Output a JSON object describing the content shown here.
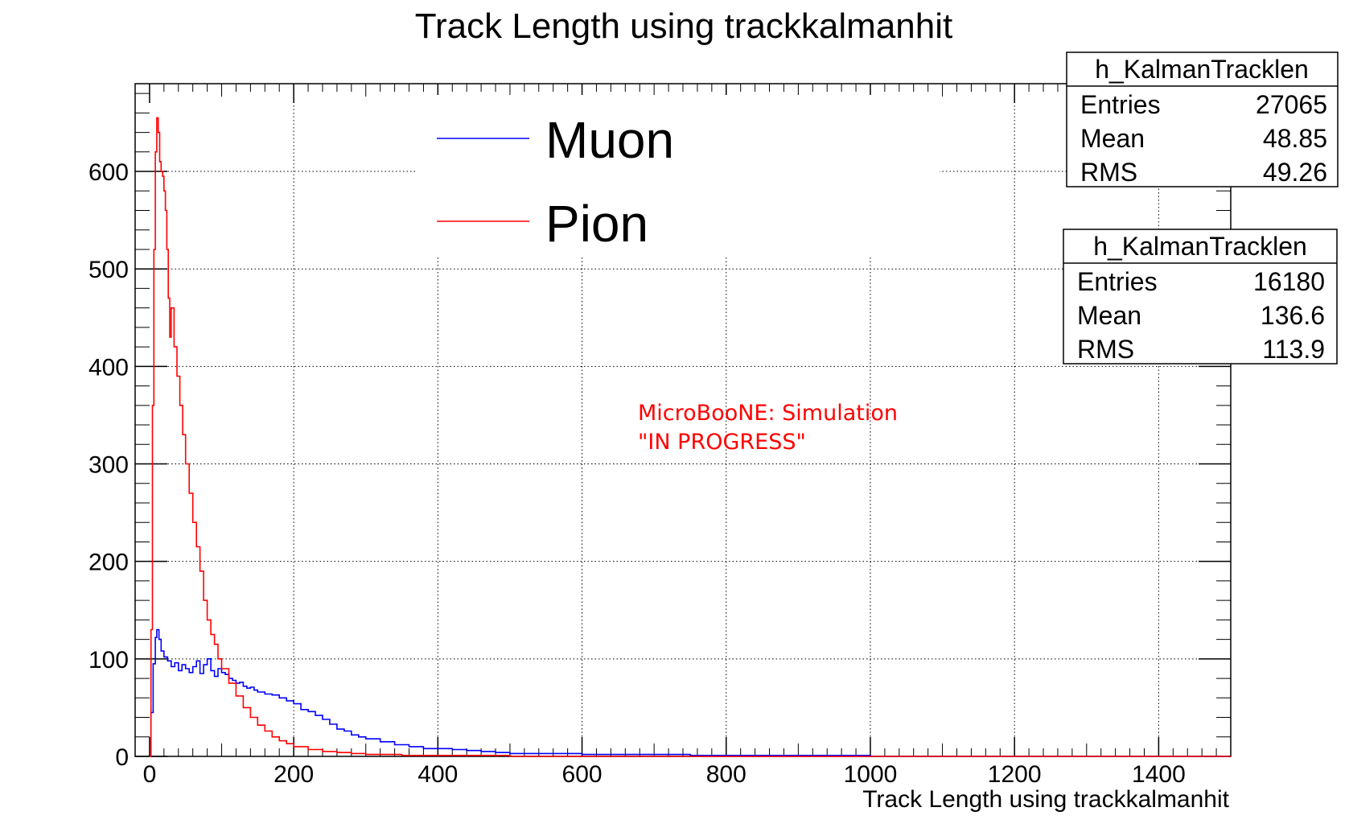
{
  "chart_data": {
    "type": "line",
    "title": "Track Length using trackkalmanhit",
    "xlabel": "Track Length using trackkalmanhit",
    "ylabel": "",
    "xlim": [
      -20,
      1500
    ],
    "ylim": [
      0,
      690
    ],
    "xticks": [
      0,
      200,
      400,
      600,
      800,
      1000,
      1200,
      1400
    ],
    "yticks": [
      0,
      100,
      200,
      300,
      400,
      500,
      600
    ],
    "grid": true,
    "legend_position": "top-center",
    "series": [
      {
        "name": "Muon",
        "color": "#0000ff",
        "x": [
          0,
          2,
          5,
          8,
          10,
          13,
          16,
          20,
          25,
          30,
          35,
          40,
          45,
          50,
          55,
          60,
          65,
          70,
          75,
          80,
          85,
          90,
          95,
          100,
          105,
          110,
          115,
          120,
          125,
          130,
          135,
          140,
          145,
          150,
          160,
          170,
          180,
          190,
          200,
          210,
          220,
          230,
          240,
          250,
          260,
          270,
          280,
          290,
          300,
          320,
          340,
          360,
          380,
          400,
          420,
          440,
          460,
          480,
          500,
          550,
          600,
          650,
          700,
          750,
          800,
          900,
          1000,
          1100,
          1200,
          1300,
          1400,
          1500
        ],
        "y": [
          0,
          45,
          95,
          122,
          130,
          120,
          108,
          102,
          98,
          92,
          96,
          88,
          94,
          90,
          86,
          92,
          98,
          85,
          94,
          100,
          88,
          82,
          90,
          86,
          84,
          80,
          78,
          75,
          76,
          72,
          70,
          71,
          68,
          66,
          64,
          63,
          60,
          57,
          54,
          48,
          46,
          42,
          38,
          33,
          28,
          26,
          22,
          20,
          18,
          15,
          12,
          10,
          8,
          8,
          7,
          6,
          5,
          4,
          3,
          3,
          2,
          2,
          2,
          1,
          1,
          1,
          0,
          0,
          0,
          0,
          0,
          0
        ]
      },
      {
        "name": "Pion",
        "color": "#ff0000",
        "x": [
          0,
          2,
          4,
          6,
          8,
          10,
          12,
          14,
          16,
          18,
          20,
          22,
          24,
          26,
          28,
          30,
          34,
          38,
          42,
          46,
          50,
          55,
          60,
          65,
          70,
          75,
          80,
          85,
          90,
          95,
          100,
          110,
          120,
          130,
          140,
          150,
          160,
          170,
          180,
          190,
          200,
          220,
          240,
          260,
          280,
          300,
          350,
          400,
          500,
          600,
          1000,
          1500
        ],
        "y": [
          0,
          130,
          360,
          520,
          620,
          655,
          640,
          610,
          600,
          595,
          580,
          560,
          520,
          470,
          430,
          460,
          420,
          390,
          360,
          330,
          300,
          270,
          240,
          215,
          190,
          160,
          140,
          125,
          115,
          100,
          90,
          75,
          62,
          50,
          40,
          32,
          26,
          20,
          16,
          13,
          10,
          7,
          5,
          4,
          3,
          2,
          1,
          1,
          0,
          0,
          0,
          0
        ]
      }
    ],
    "annotations": [
      "MicroBooNE: Simulation",
      "\"IN PROGRESS\""
    ],
    "stat_boxes": [
      {
        "title": "h_KalmanTracklen",
        "rows": [
          [
            "Entries",
            "27065"
          ],
          [
            "Mean",
            "48.85"
          ],
          [
            "RMS",
            "49.26"
          ]
        ]
      },
      {
        "title": "h_KalmanTracklen",
        "rows": [
          [
            "Entries",
            "16180"
          ],
          [
            "Mean",
            "136.6"
          ],
          [
            "RMS",
            "113.9"
          ]
        ]
      }
    ]
  }
}
